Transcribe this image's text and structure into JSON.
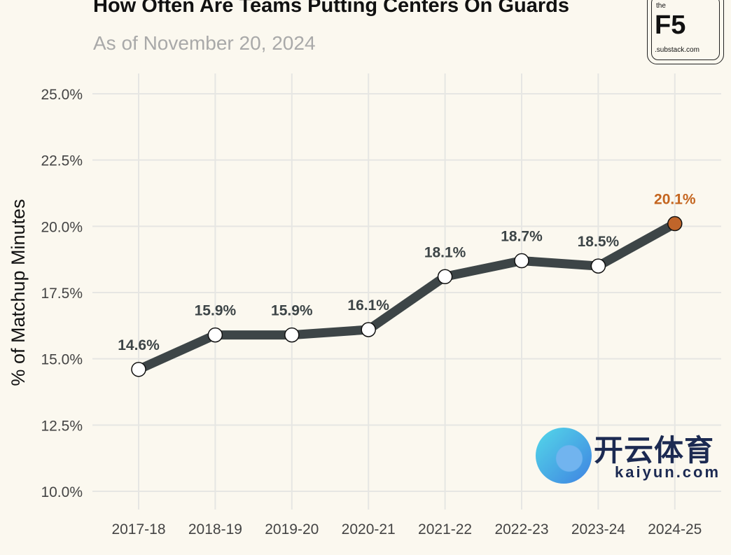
{
  "title": "How Often Are Teams Putting Centers On Guards",
  "subtitle": "As of November 20, 2024",
  "logo": {
    "top": "the",
    "main": "F5",
    "bottom": ".substack.com"
  },
  "watermark": {
    "chinese": "开云体育",
    "domain": "kaiyun.com"
  },
  "chart_data": {
    "type": "line",
    "title": "How Often Are Teams Putting Centers On Guards",
    "subtitle": "As of November 20, 2024",
    "xlabel": "",
    "ylabel": "% of Matchup Minutes",
    "categories": [
      "2017-18",
      "2018-19",
      "2019-20",
      "2020-21",
      "2021-22",
      "2022-23",
      "2023-24",
      "2024-25"
    ],
    "values": [
      14.6,
      15.9,
      15.9,
      16.1,
      18.1,
      18.7,
      18.5,
      20.1
    ],
    "data_labels": [
      "14.6%",
      "15.9%",
      "15.9%",
      "16.1%",
      "18.1%",
      "18.7%",
      "18.5%",
      "20.1%"
    ],
    "highlight_index": 7,
    "ylim": [
      10,
      25
    ],
    "yticks": [
      10,
      12.5,
      15,
      17.5,
      20,
      22.5,
      25
    ],
    "ytick_labels": [
      "10.0%",
      "12.5%",
      "15.0%",
      "17.5%",
      "20.0%",
      "22.5%",
      "25.0%"
    ],
    "grid": true,
    "colors": {
      "line": "#3d4547",
      "point": "#ffffff",
      "highlight": "#c0652a",
      "highlight_label": "#c4651f",
      "grid": "#e6e6e3"
    }
  }
}
